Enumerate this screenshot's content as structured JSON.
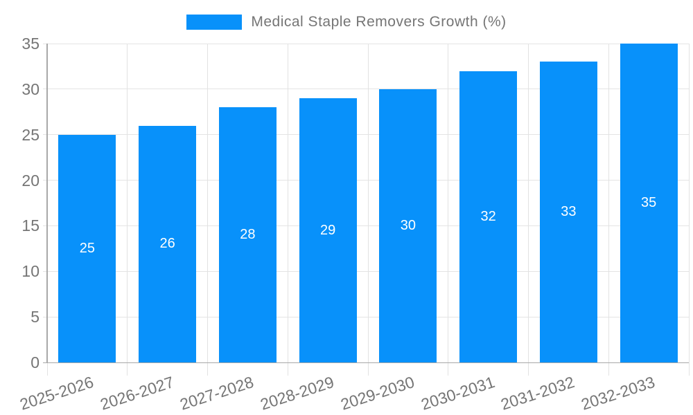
{
  "legend": {
    "label": "Medical Staple Removers Growth (%)"
  },
  "chart_data": {
    "type": "bar",
    "title": "Medical Staple Removers Growth (%)",
    "categories": [
      "2025-2026",
      "2026-2027",
      "2027-2028",
      "2028-2029",
      "2029-2030",
      "2030-2031",
      "2031-2032",
      "2032-2033"
    ],
    "series": [
      {
        "name": "Medical Staple Removers Growth (%)",
        "values": [
          25,
          26,
          28,
          29,
          30,
          32,
          33,
          35
        ]
      }
    ],
    "value_labels": [
      25,
      26,
      28,
      29,
      30,
      32,
      33,
      35
    ],
    "xlabel": "",
    "ylabel": "",
    "ylim": [
      0,
      35
    ],
    "yticks": [
      0,
      5,
      10,
      15,
      20,
      25,
      30,
      35
    ],
    "grid": true,
    "legend_position": "top-center",
    "value_label_position": "inside-center",
    "colors": {
      "bar": "#0891fa",
      "axis_text": "#757575",
      "grid_line": "#e4e4e4",
      "axis_line": "#a8a8a8",
      "value_label": "#ffffff"
    }
  }
}
